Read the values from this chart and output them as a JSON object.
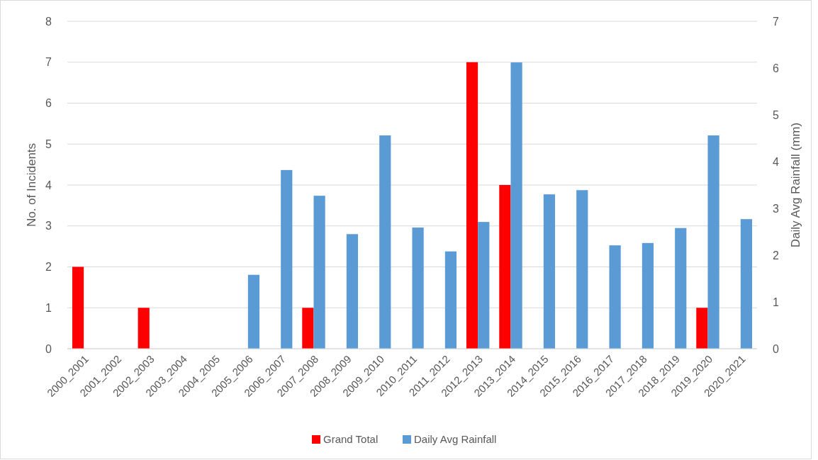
{
  "chart_data": {
    "type": "bar",
    "ylabel": "No. of Incidents",
    "y2label": "Daily Avg Rainfall (mm)",
    "categories": [
      "2000_2001",
      "2001_2002",
      "2002_2003",
      "2003_2004",
      "2004_2005",
      "2005_2006",
      "2006_2007",
      "2007_2008",
      "2008_2009",
      "2009_2010",
      "2010_2011",
      "2011_2012",
      "2012_2013",
      "2013_2014",
      "2014_2015",
      "2015_2016",
      "2016_2017",
      "2017_2018",
      "2018_2019",
      "2019_2020",
      "2020_2021"
    ],
    "series": [
      {
        "name": "Grand Total",
        "color": "#ff0000",
        "values": [
          2,
          null,
          1,
          null,
          null,
          null,
          null,
          1,
          null,
          null,
          null,
          null,
          7,
          4,
          null,
          null,
          null,
          null,
          null,
          1,
          null
        ]
      },
      {
        "name": "Daily Avg Rainfall",
        "color": "#5b9bd5",
        "axis": "y2",
        "values": [
          null,
          null,
          null,
          null,
          null,
          1.58,
          3.82,
          3.27,
          2.45,
          4.56,
          2.59,
          2.08,
          2.71,
          6.12,
          3.3,
          3.39,
          2.21,
          2.26,
          2.58,
          4.56,
          2.77
        ]
      }
    ],
    "ylim": [
      0,
      8
    ],
    "yticks": [
      0,
      1,
      2,
      3,
      4,
      5,
      6,
      7,
      8
    ],
    "y2lim": [
      0,
      7
    ],
    "y2ticks": [
      0,
      1,
      2,
      3,
      4,
      5,
      6,
      7
    ],
    "grid": "y",
    "legend": "bottom"
  }
}
